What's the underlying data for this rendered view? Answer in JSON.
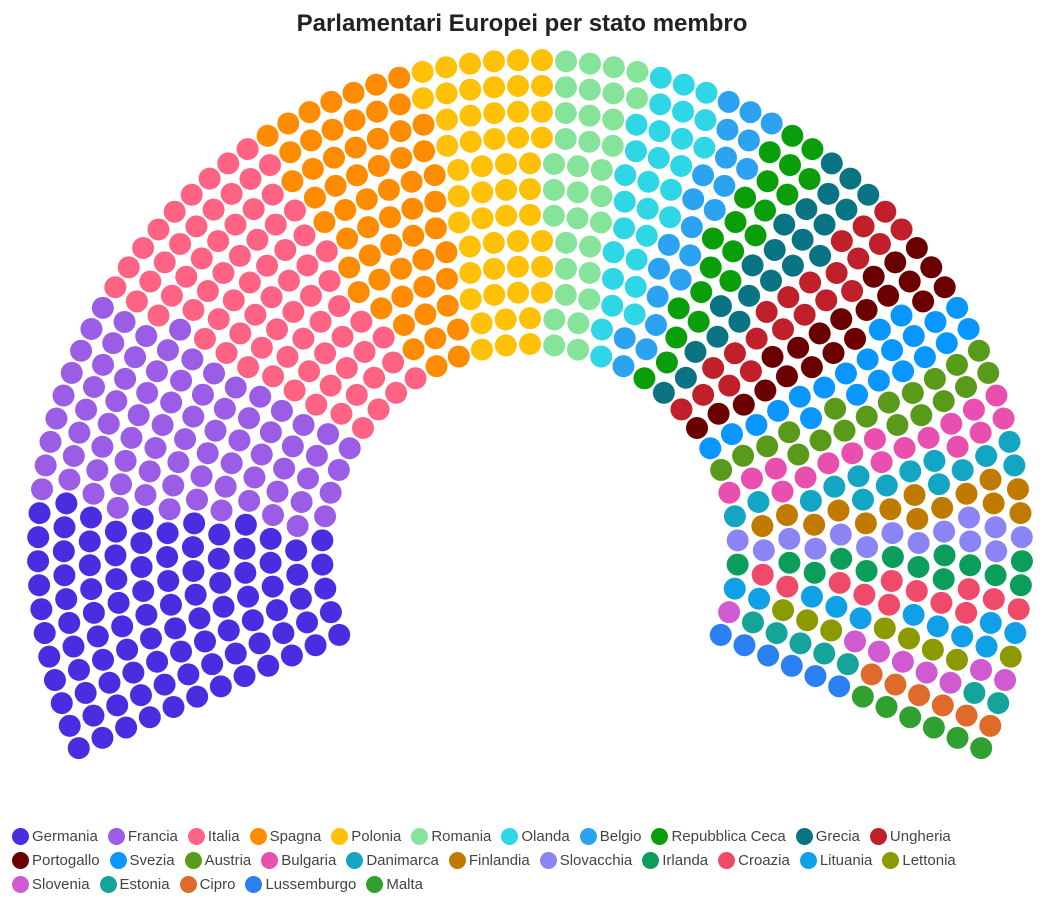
{
  "chart_data": {
    "type": "parliament",
    "title": "Parlamentari Europei per stato membro",
    "categories": [
      "Germania",
      "Francia",
      "Italia",
      "Spagna",
      "Polonia",
      "Romania",
      "Olanda",
      "Belgio",
      "Repubblica Ceca",
      "Grecia",
      "Ungheria",
      "Portogallo",
      "Svezia",
      "Austria",
      "Bulgaria",
      "Danimarca",
      "Finlandia",
      "Slovacchia",
      "Irlanda",
      "Croazia",
      "Lituania",
      "Lettonia",
      "Slovenia",
      "Estonia",
      "Cipro",
      "Lussemburgo",
      "Malta"
    ],
    "values": [
      96,
      79,
      76,
      59,
      52,
      33,
      29,
      21,
      21,
      21,
      21,
      21,
      21,
      19,
      17,
      14,
      14,
      14,
      13,
      12,
      11,
      8,
      8,
      7,
      6,
      6,
      6
    ],
    "colors": [
      "#4a2de0",
      "#9b5de5",
      "#ff6384",
      "#ff8c00",
      "#ffc107",
      "#86e39a",
      "#2fd6e6",
      "#2ba3f0",
      "#0a9e0a",
      "#0a7484",
      "#c0202a",
      "#6b0000",
      "#0a96ff",
      "#5a9a1a",
      "#e84fae",
      "#14a4c4",
      "#c07a00",
      "#8a84f5",
      "#0a9e5a",
      "#f04a6a",
      "#10a0e8",
      "#8a9a00",
      "#d05ad0",
      "#14a49a",
      "#e06a2a",
      "#2a80f0",
      "#30a030"
    ]
  }
}
